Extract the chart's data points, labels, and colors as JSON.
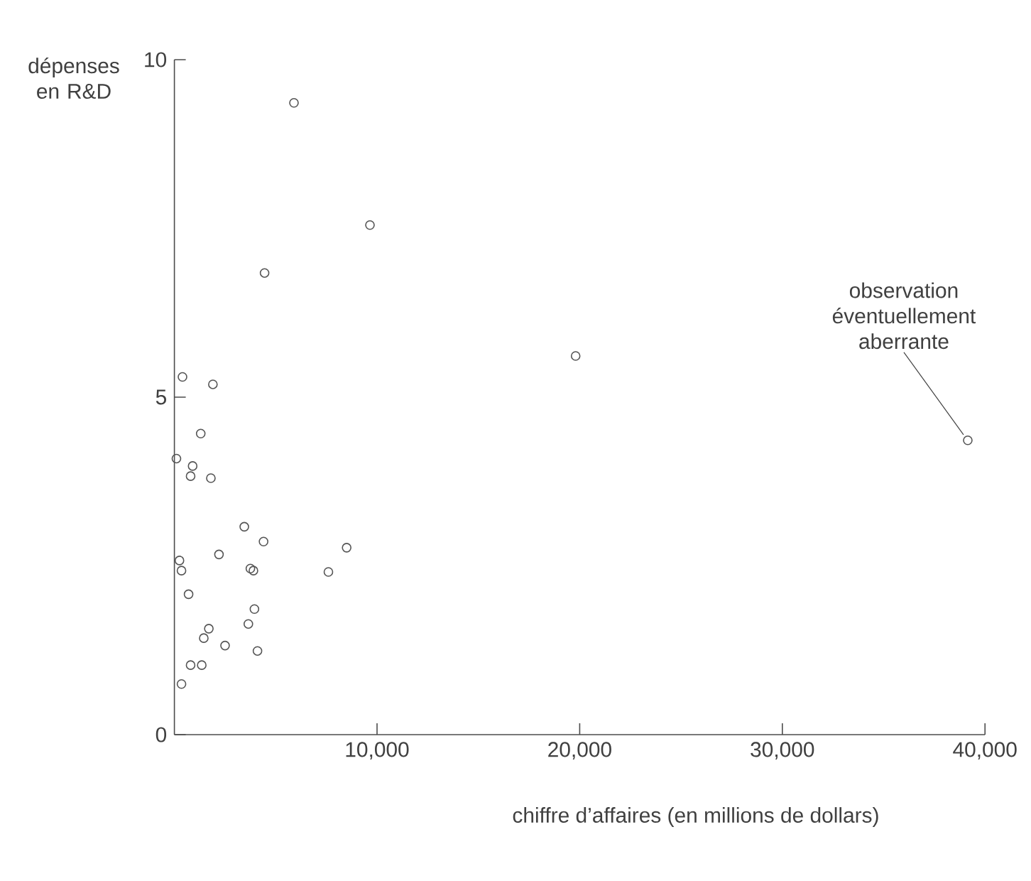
{
  "chart_data": {
    "type": "scatter",
    "xlabel": "chiffre d’affaires (en millions de dollars)",
    "ylabel": "dépenses en R&D",
    "x": [
      5900,
      9650,
      4450,
      400,
      1900,
      19800,
      39150,
      1300,
      100,
      900,
      800,
      1800,
      3450,
      4400,
      8500,
      2200,
      250,
      350,
      3750,
      3900,
      7600,
      700,
      3950,
      3650,
      1700,
      1450,
      2500,
      4100,
      800,
      1350,
      350
    ],
    "values": [
      9.36,
      7.55,
      6.84,
      5.3,
      5.19,
      5.61,
      4.36,
      4.46,
      4.09,
      3.98,
      3.83,
      3.8,
      3.08,
      2.86,
      2.77,
      2.67,
      2.58,
      2.43,
      2.46,
      2.43,
      2.41,
      2.08,
      1.86,
      1.64,
      1.57,
      1.43,
      1.32,
      1.24,
      1.03,
      1.03,
      0.75
    ],
    "color": "#555555",
    "marker": "circle",
    "xlim": [
      0,
      40000
    ],
    "ylim": [
      0,
      10
    ],
    "xticks": [
      {
        "value": 10000,
        "label": "10,000"
      },
      {
        "value": 20000,
        "label": "20,000"
      },
      {
        "value": 30000,
        "label": "30,000"
      },
      {
        "value": 40000,
        "label": "40,000"
      }
    ],
    "yticks": [
      0,
      5,
      10
    ],
    "grid": false,
    "annotations": [
      {
        "text": "observation éventuellement aberrante",
        "x": 39150,
        "y": 4.36
      }
    ]
  }
}
